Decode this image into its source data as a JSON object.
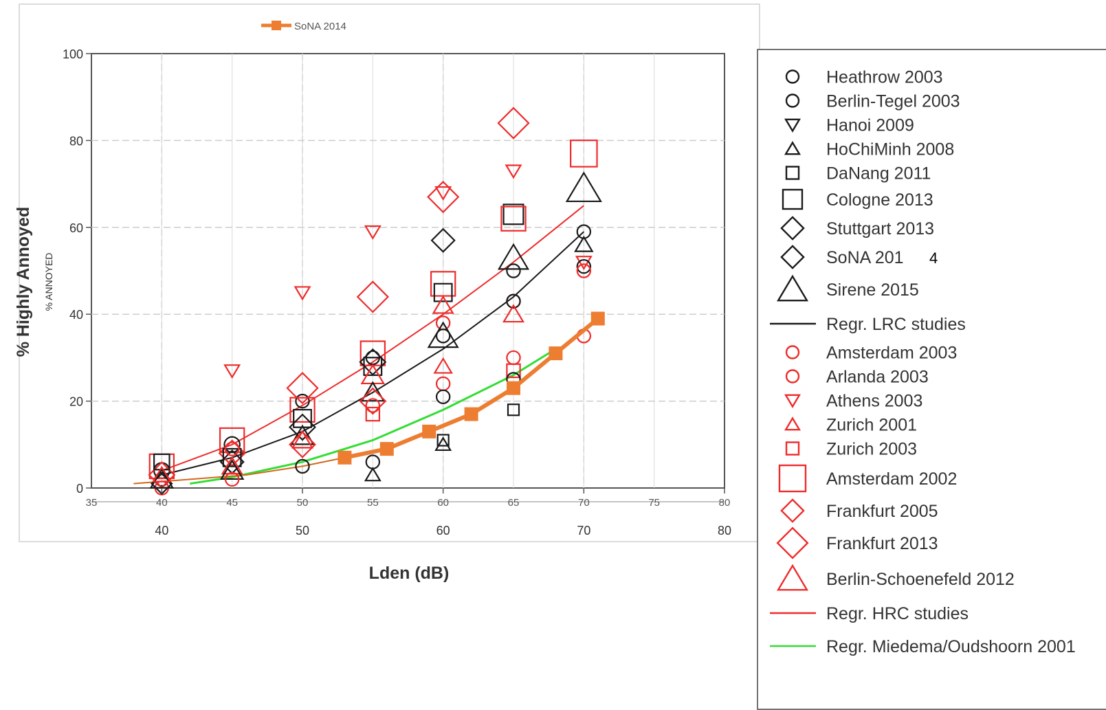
{
  "chart_data": {
    "type": "scatter",
    "xlabel": "Lden (dB)",
    "ylabel": "% Highly Annoyed",
    "ylabel_overlay": "% ANNOYED",
    "xlim": [
      35,
      80
    ],
    "ylim": [
      0,
      100
    ],
    "x_ticks": [
      40,
      50,
      60,
      70,
      80
    ],
    "y_ticks": [
      "0",
      "20",
      "40",
      "60",
      "80",
      "100"
    ],
    "overlay_x_ticks": [
      "35",
      "40",
      "45",
      "50",
      "55",
      "60",
      "65",
      "70",
      "75",
      "80"
    ],
    "grid": true,
    "top_legend": {
      "label": "SoNA 2014"
    },
    "legend_position": "right",
    "legend": [
      {
        "label": "Heathrow 2003",
        "marker": "circle-small",
        "color": "#1a1a1a"
      },
      {
        "label": "Berlin-Tegel 2003",
        "marker": "circle-small",
        "color": "#1a1a1a"
      },
      {
        "label": "Hanoi 2009",
        "marker": "triangle-down-small",
        "color": "#1a1a1a"
      },
      {
        "label": "HoChiMinh 2008",
        "marker": "triangle-up-small",
        "color": "#1a1a1a"
      },
      {
        "label": "DaNang 2011",
        "marker": "square-small",
        "color": "#1a1a1a"
      },
      {
        "label": "Cologne 2013",
        "marker": "square-medium",
        "color": "#1a1a1a"
      },
      {
        "label": "Stuttgart 2013",
        "marker": "diamond-medium",
        "color": "#1a1a1a"
      },
      {
        "label": "SoNA 201",
        "suffix": "4",
        "marker": "diamond-medium",
        "color": "#1a1a1a"
      },
      {
        "label": "Sirene 2015",
        "marker": "triangle-up-large",
        "color": "#1a1a1a"
      },
      {
        "label": "Regr. LRC studies",
        "marker": "line",
        "color": "#1a1a1a"
      },
      {
        "label": "Amsterdam 2003",
        "marker": "circle-small",
        "color": "#ee2b2b"
      },
      {
        "label": "Arlanda 2003",
        "marker": "circle-small",
        "color": "#ee2b2b"
      },
      {
        "label": "Athens 2003",
        "marker": "triangle-down-small",
        "color": "#ee2b2b"
      },
      {
        "label": "Zurich 2001",
        "marker": "triangle-up-small",
        "color": "#ee2b2b"
      },
      {
        "label": "Zurich 2003",
        "marker": "square-small",
        "color": "#ee2b2b"
      },
      {
        "label": "Amsterdam 2002",
        "marker": "square-large",
        "color": "#ee2b2b"
      },
      {
        "label": "Frankfurt 2005",
        "marker": "diamond-medium",
        "color": "#ee2b2b"
      },
      {
        "label": "Frankfurt 2013",
        "marker": "diamond-large",
        "color": "#ee2b2b"
      },
      {
        "label": "Berlin-Schoenefeld 2012",
        "marker": "triangle-up-large",
        "color": "#ee2b2b"
      },
      {
        "label": "Regr. HRC studies",
        "marker": "line",
        "color": "#ee2b2b"
      },
      {
        "label": "Regr. Miedema/Oudshoorn 2001",
        "marker": "line",
        "color": "#33dd33"
      }
    ],
    "regressions": [
      {
        "name": "Regr. LRC studies",
        "color": "#1a1a1a",
        "x": [
          40,
          45,
          50,
          55,
          60,
          65,
          70
        ],
        "y": [
          3,
          7,
          13,
          22,
          32,
          44,
          59
        ]
      },
      {
        "name": "Regr. HRC studies",
        "color": "#ee2b2b",
        "x": [
          40,
          45,
          50,
          55,
          60,
          65,
          70
        ],
        "y": [
          4,
          10,
          19,
          29,
          40,
          52,
          65
        ]
      },
      {
        "name": "Regr. Miedema/Oudshoorn 2001",
        "color": "#33dd33",
        "x": [
          42,
          45,
          50,
          55,
          60,
          65,
          68
        ],
        "y": [
          1,
          2.5,
          6,
          11,
          18,
          26,
          32
        ]
      },
      {
        "name": "",
        "color": "#d2691e",
        "x": [
          38,
          42,
          46,
          50,
          53
        ],
        "y": [
          1,
          2,
          3,
          5,
          7
        ]
      }
    ],
    "sona_2014": {
      "name": "SoNA 2014",
      "color": "#ed7d31",
      "x": [
        53,
        56,
        59,
        62,
        65,
        68,
        71
      ],
      "y": [
        7,
        9,
        13,
        17,
        23,
        31,
        39
      ]
    },
    "points": [
      {
        "x": 40,
        "y": 2,
        "m": "circle",
        "c": "k",
        "s": 12
      },
      {
        "x": 40,
        "y": 4,
        "m": "circle",
        "c": "k",
        "s": 14
      },
      {
        "x": 40,
        "y": 0,
        "m": "circle",
        "c": "r",
        "s": 12
      },
      {
        "x": 40,
        "y": 5,
        "m": "square",
        "c": "r",
        "s": 22
      },
      {
        "x": 40,
        "y": 3,
        "m": "diamond",
        "c": "r",
        "s": 20
      },
      {
        "x": 40,
        "y": 2,
        "m": "triangle-up",
        "c": "k",
        "s": 18
      },
      {
        "x": 40,
        "y": 6,
        "m": "square",
        "c": "k",
        "s": 14
      },
      {
        "x": 40,
        "y": 1,
        "m": "diamond",
        "c": "k",
        "s": 16
      },
      {
        "x": 40,
        "y": 3,
        "m": "triangle-up",
        "c": "r",
        "s": 14
      },
      {
        "x": 45,
        "y": 27,
        "m": "triangle-down",
        "c": "r",
        "s": 12
      },
      {
        "x": 45,
        "y": 11,
        "m": "square",
        "c": "r",
        "s": 22
      },
      {
        "x": 45,
        "y": 10,
        "m": "circle",
        "c": "k",
        "s": 14
      },
      {
        "x": 45,
        "y": 8,
        "m": "diamond",
        "c": "r",
        "s": 20
      },
      {
        "x": 45,
        "y": 7,
        "m": "square",
        "c": "k",
        "s": 16
      },
      {
        "x": 45,
        "y": 6,
        "m": "diamond",
        "c": "k",
        "s": 18
      },
      {
        "x": 45,
        "y": 5,
        "m": "triangle-up",
        "c": "r",
        "s": 16
      },
      {
        "x": 45,
        "y": 4,
        "m": "triangle-up",
        "c": "k",
        "s": 18
      },
      {
        "x": 45,
        "y": 2,
        "m": "circle",
        "c": "r",
        "s": 12
      },
      {
        "x": 45,
        "y": 9,
        "m": "circle",
        "c": "r",
        "s": 12
      },
      {
        "x": 50,
        "y": 45,
        "m": "triangle-down",
        "c": "r",
        "s": 12
      },
      {
        "x": 50,
        "y": 23,
        "m": "diamond",
        "c": "r",
        "s": 24
      },
      {
        "x": 50,
        "y": 20,
        "m": "circle",
        "c": "k",
        "s": 12
      },
      {
        "x": 50,
        "y": 18,
        "m": "square",
        "c": "r",
        "s": 22
      },
      {
        "x": 50,
        "y": 16,
        "m": "square",
        "c": "k",
        "s": 16
      },
      {
        "x": 50,
        "y": 14,
        "m": "diamond",
        "c": "k",
        "s": 20
      },
      {
        "x": 50,
        "y": 12,
        "m": "triangle-up",
        "c": "k",
        "s": 18
      },
      {
        "x": 50,
        "y": 10,
        "m": "diamond",
        "c": "r",
        "s": 20
      },
      {
        "x": 50,
        "y": 11,
        "m": "triangle-up",
        "c": "r",
        "s": 16
      },
      {
        "x": 50,
        "y": 5,
        "m": "circle",
        "c": "k",
        "s": 12
      },
      {
        "x": 55,
        "y": 59,
        "m": "triangle-down",
        "c": "r",
        "s": 12
      },
      {
        "x": 55,
        "y": 44,
        "m": "diamond",
        "c": "r",
        "s": 24
      },
      {
        "x": 55,
        "y": 31,
        "m": "square",
        "c": "r",
        "s": 22
      },
      {
        "x": 55,
        "y": 30,
        "m": "circle",
        "c": "k",
        "s": 12
      },
      {
        "x": 55,
        "y": 29,
        "m": "diamond",
        "c": "k",
        "s": 20
      },
      {
        "x": 55,
        "y": 28,
        "m": "square",
        "c": "k",
        "s": 16
      },
      {
        "x": 55,
        "y": 26,
        "m": "triangle-up",
        "c": "r",
        "s": 18
      },
      {
        "x": 55,
        "y": 22,
        "m": "triangle-up",
        "c": "k",
        "s": 18
      },
      {
        "x": 55,
        "y": 20,
        "m": "diamond",
        "c": "r",
        "s": 20
      },
      {
        "x": 55,
        "y": 17,
        "m": "square",
        "c": "r",
        "s": 12
      },
      {
        "x": 55,
        "y": 19,
        "m": "circle",
        "c": "r",
        "s": 12
      },
      {
        "x": 55,
        "y": 6,
        "m": "circle",
        "c": "k",
        "s": 12
      },
      {
        "x": 55,
        "y": 3,
        "m": "triangle-up",
        "c": "k",
        "s": 12
      },
      {
        "x": 60,
        "y": 68,
        "m": "triangle-down",
        "c": "r",
        "s": 12
      },
      {
        "x": 60,
        "y": 67,
        "m": "diamond",
        "c": "r",
        "s": 24
      },
      {
        "x": 60,
        "y": 57,
        "m": "diamond",
        "c": "k",
        "s": 18
      },
      {
        "x": 60,
        "y": 47,
        "m": "square",
        "c": "r",
        "s": 22
      },
      {
        "x": 60,
        "y": 45,
        "m": "square",
        "c": "k",
        "s": 16
      },
      {
        "x": 60,
        "y": 42,
        "m": "triangle-up",
        "c": "r",
        "s": 16
      },
      {
        "x": 60,
        "y": 38,
        "m": "circle",
        "c": "r",
        "s": 12
      },
      {
        "x": 60,
        "y": 35,
        "m": "circle",
        "c": "k",
        "s": 12
      },
      {
        "x": 60,
        "y": 35,
        "m": "triangle-up",
        "c": "k",
        "s": 24
      },
      {
        "x": 60,
        "y": 28,
        "m": "triangle-up",
        "c": "r",
        "s": 14
      },
      {
        "x": 60,
        "y": 24,
        "m": "circle",
        "c": "r",
        "s": 12
      },
      {
        "x": 60,
        "y": 21,
        "m": "circle",
        "c": "k",
        "s": 12
      },
      {
        "x": 60,
        "y": 11,
        "m": "square",
        "c": "k",
        "s": 10
      },
      {
        "x": 60,
        "y": 10,
        "m": "triangle-up",
        "c": "k",
        "s": 12
      },
      {
        "x": 65,
        "y": 84,
        "m": "diamond",
        "c": "r",
        "s": 24
      },
      {
        "x": 65,
        "y": 73,
        "m": "triangle-down",
        "c": "r",
        "s": 12
      },
      {
        "x": 65,
        "y": 63,
        "m": "square",
        "c": "k",
        "s": 18
      },
      {
        "x": 65,
        "y": 62,
        "m": "square",
        "c": "r",
        "s": 22
      },
      {
        "x": 65,
        "y": 53,
        "m": "triangle-up",
        "c": "k",
        "s": 24
      },
      {
        "x": 65,
        "y": 50,
        "m": "circle",
        "c": "k",
        "s": 12
      },
      {
        "x": 65,
        "y": 43,
        "m": "circle",
        "c": "r",
        "s": 12
      },
      {
        "x": 65,
        "y": 43,
        "m": "circle",
        "c": "k",
        "s": 12
      },
      {
        "x": 65,
        "y": 40,
        "m": "triangle-up",
        "c": "r",
        "s": 16
      },
      {
        "x": 65,
        "y": 30,
        "m": "circle",
        "c": "r",
        "s": 12
      },
      {
        "x": 65,
        "y": 27,
        "m": "square",
        "c": "r",
        "s": 12
      },
      {
        "x": 65,
        "y": 25,
        "m": "circle",
        "c": "k",
        "s": 12
      },
      {
        "x": 65,
        "y": 18,
        "m": "square",
        "c": "k",
        "s": 10
      },
      {
        "x": 70,
        "y": 77,
        "m": "square",
        "c": "r",
        "s": 24
      },
      {
        "x": 70,
        "y": 69,
        "m": "triangle-up",
        "c": "k",
        "s": 28
      },
      {
        "x": 70,
        "y": 59,
        "m": "circle",
        "c": "k",
        "s": 12
      },
      {
        "x": 70,
        "y": 56,
        "m": "triangle-up",
        "c": "k",
        "s": 14
      },
      {
        "x": 70,
        "y": 52,
        "m": "triangle-down",
        "c": "r",
        "s": 12
      },
      {
        "x": 70,
        "y": 51,
        "m": "circle",
        "c": "k",
        "s": 12
      },
      {
        "x": 70,
        "y": 50,
        "m": "circle",
        "c": "r",
        "s": 12
      },
      {
        "x": 70,
        "y": 35,
        "m": "circle",
        "c": "r",
        "s": 12
      }
    ]
  }
}
